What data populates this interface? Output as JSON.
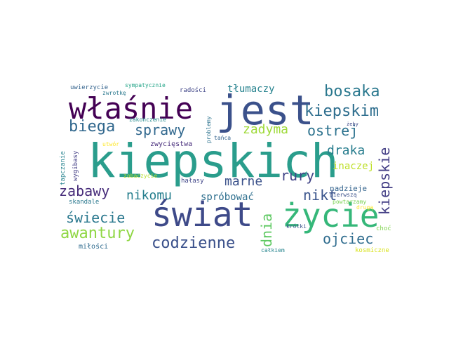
{
  "words": {
    "kiepskich": "kiepskich",
    "jest": "jest",
    "wlasnie": "właśnie",
    "swiat": "świat",
    "zycie": "życie",
    "kiepskim": "kiepskim",
    "bosaka": "bosaka",
    "biega": "biega",
    "sprawy": "sprawy",
    "zadyma": "zadyma",
    "ostrej": "ostrej",
    "kiepskie": "kiepskie",
    "draka": "draka",
    "inaczej": "inaczej",
    "rury": "rury",
    "marne": "marne",
    "zabawy": "zabawy",
    "nikomu": "nikomu",
    "sprobowac": "spróbować",
    "nikt": "nikt",
    "nadzieje": "nadzieje",
    "swiecie": "świecie",
    "dnia": "dnia",
    "awantury": "awantury",
    "codzienne": "codzienne",
    "ojciec": "ojciec",
    "tlumaczy": "tłumaczy",
    "uwierzycie": "uwierzycie",
    "sympatycznie": "sympatycznie",
    "zwrotke": "zwrotkę",
    "radosci": "radości",
    "zakonczenie": "zakończenie",
    "problemy": "problemy",
    "tanca": "tańca",
    "zeby": "żeby",
    "utwor": "utwór",
    "zwyciestwa": "zwycięstwa",
    "tapczanie": "tapczanie",
    "wygibasy": "wygibasy",
    "zobaczycie": "zobaczycie",
    "halasy": "hałasy",
    "skandale": "skandale",
    "pierwsza": "pierwszą",
    "powtarzamy": "powtarzamy",
    "druga": "drugą",
    "choc": "choć",
    "krotki": "krótki",
    "milosci": "miłości",
    "calkiem": "całkiem",
    "kosmiczne": "kosmiczne"
  }
}
